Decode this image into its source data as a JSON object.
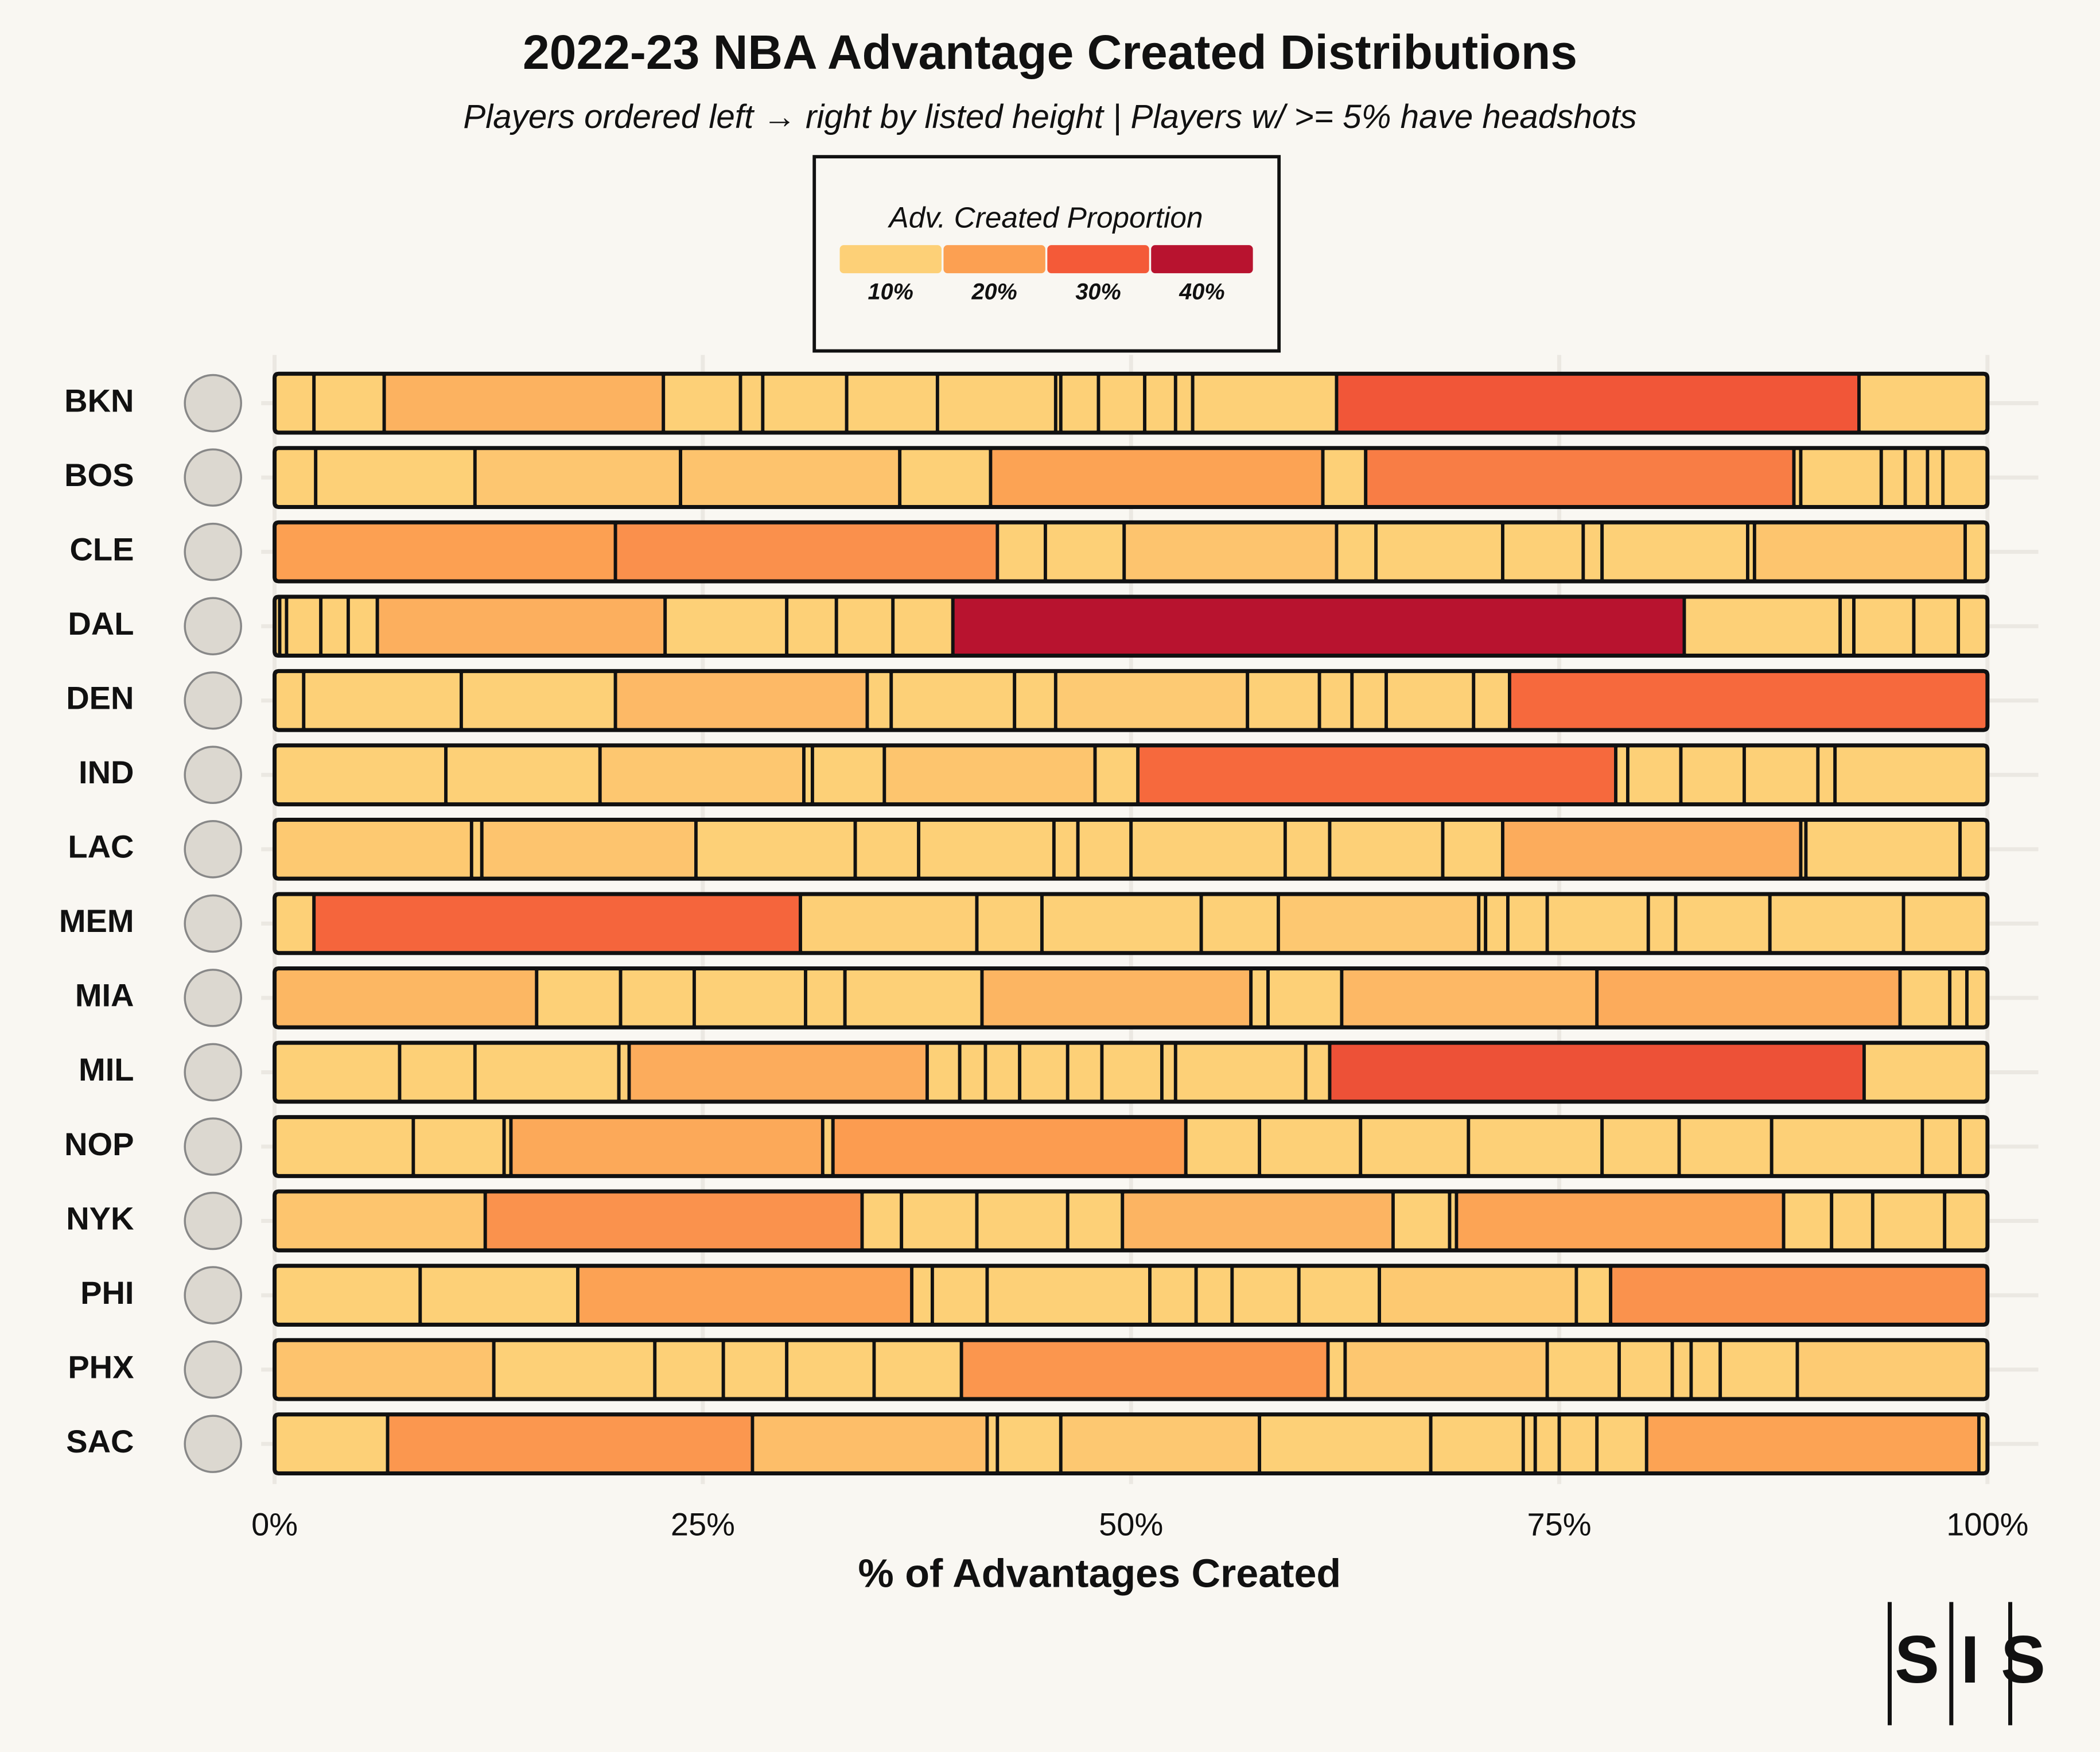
{
  "chart_data": {
    "type": "stacked-bar",
    "title": "2022-23 NBA Advantage Created Distributions",
    "subtitle": "Players ordered left → right by listed height | Players w/ >= 5% have headshots",
    "xlabel": "% of Advantages Created",
    "xlim": [
      0,
      100
    ],
    "xticks": [
      {
        "value": 0,
        "label": "0%"
      },
      {
        "value": 25,
        "label": "25%"
      },
      {
        "value": 50,
        "label": "50%"
      },
      {
        "value": 75,
        "label": "75%"
      },
      {
        "value": 100,
        "label": "100%"
      }
    ],
    "grid": true,
    "legend": {
      "title": "Adv. Created Proportion",
      "colors": [
        "#fdd077",
        "#fca052",
        "#f45a38",
        "#b8132f"
      ],
      "ticks": [
        {
          "value": 10,
          "label": "10%"
        },
        {
          "value": 20,
          "label": "20%"
        },
        {
          "value": 30,
          "label": "30%"
        },
        {
          "value": 40,
          "label": "40%"
        }
      ]
    },
    "source_logo": "SIS",
    "rows": [
      {
        "team": "BKN",
        "values": [
          2.3,
          4.1,
          16.3,
          4.5,
          1.3,
          4.9,
          5.3,
          6.9,
          0.3,
          2.2,
          2.7,
          1.8,
          1.0,
          8.4,
          30.5,
          7.5
        ]
      },
      {
        "team": "BOS",
        "values": [
          2.4,
          9.3,
          12.0,
          12.8,
          5.3,
          19.4,
          2.5,
          25.0,
          0.4,
          4.7,
          1.4,
          1.3,
          0.9,
          2.6
        ]
      },
      {
        "team": "CLE",
        "values": [
          19.9,
          22.3,
          2.8,
          4.6,
          12.4,
          2.3,
          7.4,
          4.7,
          1.1,
          8.5,
          0.4,
          12.3,
          1.3
        ]
      },
      {
        "team": "DAL",
        "values": [
          0.3,
          0.4,
          2.0,
          1.6,
          1.7,
          16.8,
          7.1,
          2.9,
          3.3,
          3.5,
          42.7,
          9.1,
          0.8,
          3.5,
          2.6,
          1.7
        ]
      },
      {
        "team": "DEN",
        "values": [
          1.7,
          9.2,
          9.0,
          14.7,
          1.4,
          7.2,
          2.4,
          11.2,
          4.2,
          1.9,
          2.0,
          5.1,
          2.1,
          27.9
        ]
      },
      {
        "team": "IND",
        "values": [
          10.0,
          9.0,
          11.9,
          0.5,
          4.2,
          12.3,
          2.5,
          27.9,
          0.7,
          3.1,
          3.7,
          4.3,
          1.0,
          8.9
        ]
      },
      {
        "team": "LAC",
        "values": [
          11.5,
          0.6,
          12.5,
          9.3,
          3.7,
          7.9,
          1.4,
          3.1,
          9.0,
          2.6,
          6.6,
          3.5,
          17.4,
          0.3,
          9.0,
          1.6
        ]
      },
      {
        "team": "MEM",
        "values": [
          2.3,
          28.4,
          10.3,
          3.8,
          9.3,
          4.5,
          11.7,
          0.4,
          1.3,
          2.3,
          5.9,
          1.6,
          5.5,
          7.8,
          4.9
        ]
      },
      {
        "team": "MIA",
        "values": [
          15.3,
          4.9,
          4.3,
          6.5,
          2.3,
          8.0,
          15.7,
          1.0,
          4.3,
          14.9,
          17.7,
          2.9,
          1.0,
          1.2
        ]
      },
      {
        "team": "MIL",
        "values": [
          7.3,
          4.4,
          8.4,
          0.6,
          17.4,
          1.9,
          1.5,
          2.0,
          2.8,
          2.0,
          3.5,
          0.8,
          7.6,
          1.4,
          31.2,
          7.2
        ]
      },
      {
        "team": "NOP",
        "values": [
          8.1,
          5.3,
          0.4,
          18.2,
          0.6,
          20.6,
          4.3,
          5.9,
          6.3,
          7.8,
          4.5,
          5.4,
          8.8,
          2.2,
          1.6
        ]
      },
      {
        "team": "NYK",
        "values": [
          12.3,
          22.0,
          2.3,
          4.4,
          5.3,
          3.2,
          15.8,
          3.3,
          0.4,
          19.1,
          2.8,
          2.4,
          4.2,
          2.5
        ]
      },
      {
        "team": "PHI",
        "values": [
          8.5,
          9.2,
          19.5,
          1.2,
          3.2,
          9.5,
          2.7,
          2.1,
          3.9,
          4.7,
          11.5,
          2.0,
          22.0
        ]
      },
      {
        "team": "PHX",
        "values": [
          12.8,
          9.4,
          4.0,
          3.7,
          5.1,
          5.1,
          21.4,
          1.0,
          11.8,
          4.2,
          3.1,
          1.1,
          1.7,
          4.5,
          11.1
        ]
      },
      {
        "team": "SAC",
        "values": [
          6.6,
          21.3,
          13.7,
          0.6,
          3.7,
          11.6,
          10.0,
          5.4,
          0.7,
          1.4,
          2.2,
          2.9,
          19.4,
          0.5
        ]
      }
    ]
  }
}
